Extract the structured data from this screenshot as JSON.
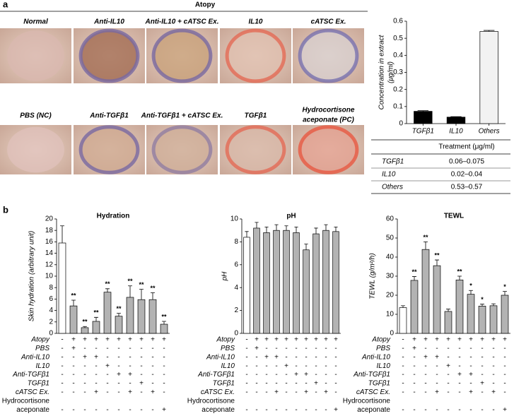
{
  "panel_a": {
    "label": "a",
    "title": "Atopy",
    "photos": [
      "Normal",
      "Anti-IL10",
      "Anti-IL10 + cATSC Ex.",
      "IL10",
      "cATSC Ex.",
      "PBS (NC)",
      "Anti-TGFβ1",
      "Anti-TGFβ1 + cATSC Ex.",
      "TGFβ1",
      [
        "Hydrocortisone",
        "aceponate (PC)"
      ]
    ]
  },
  "table": {
    "header": "Treatment (μg/ml)",
    "rows": [
      [
        "TGFβ1",
        "0.06–0.075"
      ],
      [
        "IL10",
        "0.02–0.04"
      ],
      [
        "Others",
        "0.53–0.57"
      ]
    ]
  },
  "panel_b": {
    "label": "b",
    "treatments": [
      {
        "label": "Atopy",
        "signs": [
          "-",
          "+",
          "+",
          "+",
          "+",
          "+",
          "+",
          "+",
          "+",
          "+"
        ]
      },
      {
        "label": "PBS",
        "signs": [
          "-",
          "+",
          "-",
          "-",
          "-",
          "-",
          "-",
          "-",
          "-",
          "-"
        ]
      },
      {
        "label": "Anti-IL10",
        "signs": [
          "-",
          "-",
          "+",
          "+",
          "-",
          "-",
          "-",
          "-",
          "-",
          "-"
        ]
      },
      {
        "label": "IL10",
        "signs": [
          "-",
          "-",
          "-",
          "-",
          "+",
          "-",
          "-",
          "-",
          "-",
          "-"
        ]
      },
      {
        "label": "Anti-TGFβ1",
        "signs": [
          "-",
          "-",
          "-",
          "-",
          "-",
          "+",
          "+",
          "-",
          "-",
          "-"
        ]
      },
      {
        "label": "TGFβ1",
        "signs": [
          "-",
          "-",
          "-",
          "-",
          "-",
          "-",
          "-",
          "+",
          "-",
          "-"
        ]
      },
      {
        "label": "cATSC Ex.",
        "signs": [
          "-",
          "-",
          "-",
          "+",
          "-",
          "-",
          "+",
          "-",
          "+",
          "-"
        ]
      },
      {
        "label": [
          "Hydrocortisone",
          "aceponate"
        ],
        "signs": [
          "-",
          "-",
          "-",
          "-",
          "-",
          "-",
          "-",
          "-",
          "-",
          "+"
        ]
      }
    ]
  },
  "chart_data": [
    {
      "type": "bar",
      "y_label": [
        "Concentration in extract",
        "(μg/ml)"
      ],
      "categories": [
        "TGFβ1",
        "IL10",
        "Others"
      ],
      "values": [
        0.072,
        0.038,
        0.54
      ],
      "errors": [
        0.004,
        0.003,
        0.006
      ],
      "colors": [
        "#000000",
        "#000000",
        "#f2f2f2"
      ],
      "ylim": [
        0,
        0.6
      ],
      "yticks": [
        0,
        0.1,
        0.2,
        0.3,
        0.4,
        0.5,
        0.6
      ]
    },
    {
      "type": "bar",
      "title": "Hydration",
      "y_label": [
        "Skin hydration (arbitrary unit)"
      ],
      "values": [
        15.8,
        4.8,
        1.0,
        2.1,
        7.2,
        3.0,
        6.3,
        5.9,
        5.9,
        1.6
      ],
      "errors": [
        3.0,
        1.0,
        0.2,
        0.7,
        0.6,
        0.5,
        2.0,
        1.8,
        1.2,
        0.5
      ],
      "annotations": [
        null,
        "**",
        "**",
        "**",
        "**",
        "**",
        "**",
        "**",
        "**",
        "**"
      ],
      "colors": [
        "#ffffff",
        "#b3b3b3",
        "#b3b3b3",
        "#b3b3b3",
        "#b3b3b3",
        "#b3b3b3",
        "#b3b3b3",
        "#b3b3b3",
        "#b3b3b3",
        "#b3b3b3"
      ],
      "ylim": [
        0,
        20
      ],
      "yticks": [
        0,
        2,
        4,
        6,
        8,
        10,
        12,
        14,
        16,
        18,
        20
      ]
    },
    {
      "type": "bar",
      "title": "pH",
      "y_label": [
        "pH"
      ],
      "values": [
        8.4,
        9.2,
        8.8,
        9.0,
        9.0,
        8.8,
        7.3,
        8.7,
        9.0,
        8.9
      ],
      "errors": [
        0.5,
        0.5,
        0.5,
        0.5,
        0.4,
        0.5,
        0.5,
        0.5,
        0.5,
        0.4
      ],
      "colors": [
        "#ffffff",
        "#b3b3b3",
        "#b3b3b3",
        "#b3b3b3",
        "#b3b3b3",
        "#b3b3b3",
        "#b3b3b3",
        "#b3b3b3",
        "#b3b3b3",
        "#b3b3b3"
      ],
      "ylim": [
        0,
        10
      ],
      "yticks": [
        0,
        2,
        4,
        6,
        8,
        10
      ]
    },
    {
      "type": "bar",
      "title": "TEWL",
      "y_label": [
        "TEWL (g/m²/h)"
      ],
      "values": [
        13.5,
        27.8,
        44.0,
        35.5,
        11.5,
        28.0,
        20.5,
        14.3,
        14.5,
        20.0
      ],
      "errors": [
        1.0,
        2.0,
        4.0,
        3.0,
        1.2,
        2.0,
        2.0,
        1.0,
        1.0,
        2.0
      ],
      "annotations": [
        null,
        "**",
        "**",
        "**",
        null,
        "**",
        "*",
        "*",
        null,
        "*"
      ],
      "colors": [
        "#ffffff",
        "#b3b3b3",
        "#b3b3b3",
        "#b3b3b3",
        "#b3b3b3",
        "#b3b3b3",
        "#b3b3b3",
        "#b3b3b3",
        "#b3b3b3",
        "#b3b3b3"
      ],
      "ylim": [
        0,
        60
      ],
      "yticks": [
        0,
        10,
        20,
        30,
        40,
        50,
        60
      ]
    }
  ]
}
